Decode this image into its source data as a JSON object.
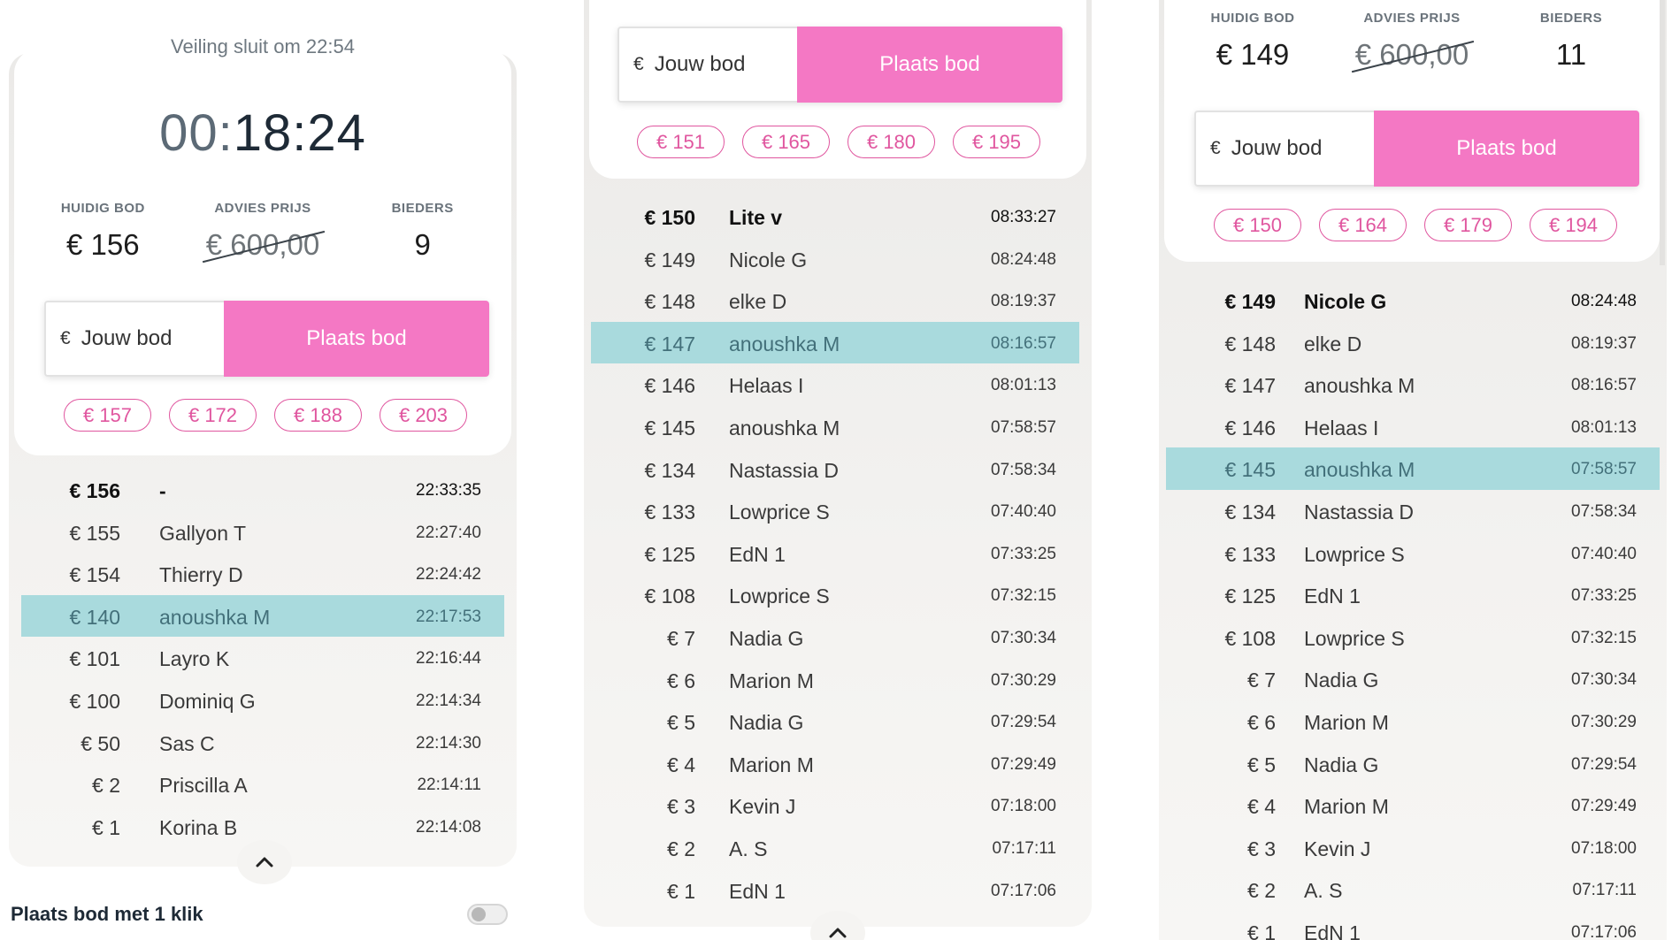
{
  "panel1": {
    "closes_text": "Veiling sluit om 22:54",
    "timer_hours": "00:",
    "timer_rest": "18:24",
    "stats": {
      "current_label": "HUIDIG BOD",
      "current_value": "€ 156",
      "advice_label": "ADVIES PRIJS",
      "advice_value": "€ 600,00",
      "bidders_label": "BIEDERS",
      "bidders_value": "9"
    },
    "bid_currency": "€",
    "bid_placeholder": "Jouw bod",
    "bid_button": "Plaats bod",
    "chips": [
      "€ 157",
      "€ 172",
      "€ 188",
      "€ 203"
    ],
    "bids": [
      {
        "amount": "€ 156",
        "name": "-",
        "time": "22:33:35"
      },
      {
        "amount": "€ 155",
        "name": "Gallyon T",
        "time": "22:27:40"
      },
      {
        "amount": "€ 154",
        "name": "Thierry D",
        "time": "22:24:42"
      },
      {
        "amount": "€ 140",
        "name": "anoushka M",
        "time": "22:17:53"
      },
      {
        "amount": "€ 101",
        "name": "Layro K",
        "time": "22:16:44"
      },
      {
        "amount": "€ 100",
        "name": "Dominiq G",
        "time": "22:14:34"
      },
      {
        "amount": "€ 50",
        "name": "Sas C",
        "time": "22:14:30"
      },
      {
        "amount": "€ 2",
        "name": "Priscilla A",
        "time": "22:14:11"
      },
      {
        "amount": "€ 1",
        "name": "Korina B",
        "time": "22:14:08"
      }
    ],
    "one_click_label": "Plaats bod met 1 klik"
  },
  "panel2": {
    "bid_currency": "€",
    "bid_placeholder": "Jouw bod",
    "bid_button": "Plaats bod",
    "chips": [
      "€ 151",
      "€ 165",
      "€ 180",
      "€ 195"
    ],
    "bids": [
      {
        "amount": "€ 150",
        "name": "Lite v",
        "time": "08:33:27"
      },
      {
        "amount": "€ 149",
        "name": "Nicole G",
        "time": "08:24:48"
      },
      {
        "amount": "€ 148",
        "name": "elke D",
        "time": "08:19:37"
      },
      {
        "amount": "€ 147",
        "name": "anoushka M",
        "time": "08:16:57"
      },
      {
        "amount": "€ 146",
        "name": "Helaas I",
        "time": "08:01:13"
      },
      {
        "amount": "€ 145",
        "name": "anoushka M",
        "time": "07:58:57"
      },
      {
        "amount": "€ 134",
        "name": "Nastassia D",
        "time": "07:58:34"
      },
      {
        "amount": "€ 133",
        "name": "Lowprice S",
        "time": "07:40:40"
      },
      {
        "amount": "€ 125",
        "name": "EdN 1",
        "time": "07:33:25"
      },
      {
        "amount": "€ 108",
        "name": "Lowprice S",
        "time": "07:32:15"
      },
      {
        "amount": "€ 7",
        "name": "Nadia G",
        "time": "07:30:34"
      },
      {
        "amount": "€ 6",
        "name": "Marion M",
        "time": "07:30:29"
      },
      {
        "amount": "€ 5",
        "name": "Nadia G",
        "time": "07:29:54"
      },
      {
        "amount": "€ 4",
        "name": "Marion M",
        "time": "07:29:49"
      },
      {
        "amount": "€ 3",
        "name": "Kevin J",
        "time": "07:18:00"
      },
      {
        "amount": "€ 2",
        "name": "A. S",
        "time": "07:17:11"
      },
      {
        "amount": "€ 1",
        "name": "EdN 1",
        "time": "07:17:06"
      }
    ]
  },
  "panel3": {
    "stats": {
      "current_label": "HUIDIG BOD",
      "current_value": "€ 149",
      "advice_label": "ADVIES PRIJS",
      "advice_value": "€ 600,00",
      "bidders_label": "BIEDERS",
      "bidders_value": "11"
    },
    "bid_currency": "€",
    "bid_placeholder": "Jouw bod",
    "bid_button": "Plaats bod",
    "chips": [
      "€ 150",
      "€ 164",
      "€ 179",
      "€ 194"
    ],
    "bids": [
      {
        "amount": "€ 149",
        "name": "Nicole G",
        "time": "08:24:48"
      },
      {
        "amount": "€ 148",
        "name": "elke D",
        "time": "08:19:37"
      },
      {
        "amount": "€ 147",
        "name": "anoushka M",
        "time": "08:16:57"
      },
      {
        "amount": "€ 146",
        "name": "Helaas I",
        "time": "08:01:13"
      },
      {
        "amount": "€ 145",
        "name": "anoushka M",
        "time": "07:58:57"
      },
      {
        "amount": "€ 134",
        "name": "Nastassia D",
        "time": "07:58:34"
      },
      {
        "amount": "€ 133",
        "name": "Lowprice S",
        "time": "07:40:40"
      },
      {
        "amount": "€ 125",
        "name": "EdN 1",
        "time": "07:33:25"
      },
      {
        "amount": "€ 108",
        "name": "Lowprice S",
        "time": "07:32:15"
      },
      {
        "amount": "€ 7",
        "name": "Nadia G",
        "time": "07:30:34"
      },
      {
        "amount": "€ 6",
        "name": "Marion M",
        "time": "07:30:29"
      },
      {
        "amount": "€ 5",
        "name": "Nadia G",
        "time": "07:29:54"
      },
      {
        "amount": "€ 4",
        "name": "Marion M",
        "time": "07:29:49"
      },
      {
        "amount": "€ 3",
        "name": "Kevin J",
        "time": "07:18:00"
      },
      {
        "amount": "€ 2",
        "name": "A. S",
        "time": "07:17:11"
      },
      {
        "amount": "€ 1",
        "name": "EdN 1",
        "time": "07:17:06"
      }
    ]
  },
  "colors": {
    "accent_pink": "#f478c4",
    "chip_pink": "#e0569f",
    "highlight_row": "#a9dadd",
    "timer_text": "#1e2a36"
  },
  "icons": {
    "collapse": "chevron-up-icon"
  }
}
